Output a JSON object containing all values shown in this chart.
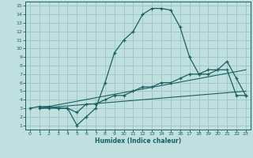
{
  "xlabel": "Humidex (Indice chaleur)",
  "bg_color": "#c0e0e0",
  "grid_color": "#a0c8c8",
  "line_color": "#1a6060",
  "xlim": [
    -0.5,
    23.5
  ],
  "ylim": [
    0.5,
    15.5
  ],
  "xticks": [
    0,
    1,
    2,
    3,
    4,
    5,
    6,
    7,
    8,
    9,
    10,
    11,
    12,
    13,
    14,
    15,
    16,
    17,
    18,
    19,
    20,
    21,
    22,
    23
  ],
  "yticks": [
    1,
    2,
    3,
    4,
    5,
    6,
    7,
    8,
    9,
    10,
    11,
    12,
    13,
    14,
    15
  ],
  "line1_x": [
    1,
    2,
    3,
    4,
    5,
    6,
    7,
    8,
    9,
    10,
    11,
    12,
    13,
    14,
    15,
    16,
    17,
    18,
    19,
    20,
    21,
    22,
    23
  ],
  "line1_y": [
    3,
    3,
    3,
    3,
    1,
    2,
    3,
    6,
    9.5,
    11,
    12,
    14,
    14.7,
    14.7,
    14.5,
    12.5,
    9,
    7,
    7,
    7.5,
    8.5,
    6.5,
    4.5
  ],
  "line2_x": [
    0,
    1,
    2,
    3,
    4,
    5,
    6,
    7,
    8,
    9,
    10,
    11,
    12,
    13,
    14,
    15,
    16,
    17,
    18,
    19,
    20,
    21,
    22,
    23
  ],
  "line2_y": [
    3,
    3.2,
    3.2,
    3.0,
    3.0,
    2.5,
    3.5,
    3.5,
    4.0,
    4.5,
    4.5,
    5.0,
    5.5,
    5.5,
    6.0,
    6.0,
    6.5,
    7.0,
    7.0,
    7.5,
    7.5,
    7.5,
    4.5,
    4.5
  ],
  "line3_x": [
    1,
    23
  ],
  "line3_y": [
    3,
    7.5
  ],
  "line4_x": [
    1,
    23
  ],
  "line4_y": [
    3,
    5.0
  ]
}
